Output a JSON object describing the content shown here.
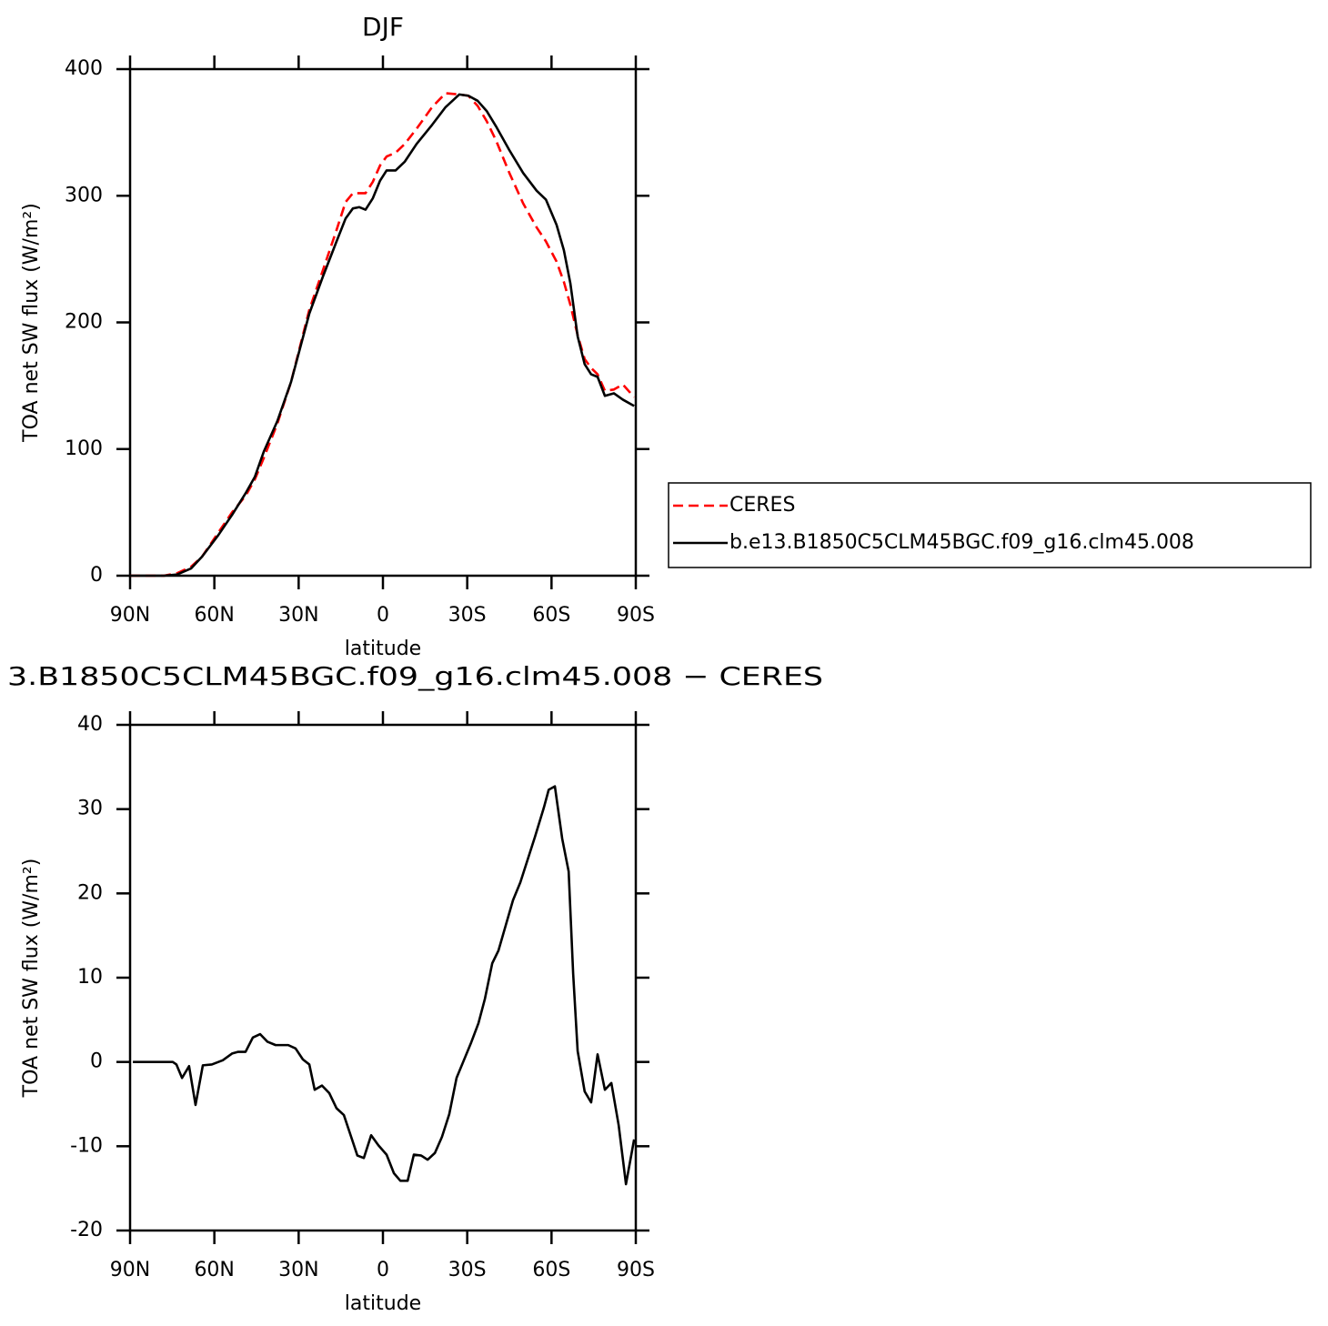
{
  "chart_data": [
    {
      "type": "line",
      "title": "DJF",
      "xlabel": "latitude",
      "ylabel": "TOA net SW flux (W/m²)",
      "xlim": [
        90,
        -90
      ],
      "xticks": [
        {
          "value": 90,
          "label": "90N"
        },
        {
          "value": 60,
          "label": "60N"
        },
        {
          "value": 30,
          "label": "30N"
        },
        0,
        {
          "value": -30,
          "label": "30S"
        },
        {
          "value": -60,
          "label": "60S"
        },
        {
          "value": -90,
          "label": "90S"
        }
      ],
      "ylim": [
        0,
        400
      ],
      "yticks": [
        0,
        100,
        200,
        300,
        400
      ],
      "legend": "right",
      "x": [
        90,
        84.5,
        78.0,
        73.2,
        68.3,
        64.4,
        58.6,
        53.7,
        48.9,
        45.6,
        42.4,
        37.6,
        32.7,
        26.2,
        21.4,
        16.5,
        13.3,
        10.7,
        8.4,
        6.2,
        3.6,
        1.0,
        -1.3,
        -4.5,
        -7.8,
        -12.0,
        -17.5,
        -22.3,
        -27.2,
        -30.4,
        -33.7,
        -36.9,
        -40.2,
        -45.0,
        -49.9,
        -54.7,
        -58.0,
        -61.8,
        -64.4,
        -66.7,
        -69.3,
        -71.8,
        -74.1,
        -76.4,
        -79.0,
        -82.2,
        -85.4,
        -89.4
      ],
      "series": [
        {
          "name": "CERES",
          "color": "#ff0000",
          "dashed": true,
          "values": [
            0,
            0,
            0,
            2,
            7,
            15,
            34,
            50,
            63,
            76,
            93,
            120,
            153,
            210,
            241,
            273,
            295,
            302,
            302,
            302,
            311,
            324,
            331,
            334,
            341,
            353,
            370,
            381,
            380,
            379,
            371,
            359,
            344,
            318,
            294,
            275,
            264,
            248,
            232,
            214,
            190,
            171,
            164,
            159,
            146,
            147,
            151,
            141
          ]
        },
        {
          "name": "b.e13.B1850C5CLM45BGC.f09_g16.clm45.008",
          "color": "#000000",
          "dashed": false,
          "values": [
            0,
            0,
            0,
            1,
            5.7,
            15,
            32,
            48,
            65,
            78,
            98,
            122,
            153,
            207,
            236,
            264,
            282,
            290,
            291,
            289,
            298,
            312,
            320,
            320,
            327,
            341,
            356,
            370,
            380,
            379,
            375,
            367,
            355,
            336,
            318,
            304,
            297,
            277,
            257,
            231,
            189,
            167,
            159,
            157,
            142,
            144,
            139,
            134
          ]
        }
      ]
    },
    {
      "type": "line",
      "title": "3.B1850C5CLM45BGC.f09_g16.clm45.008 − CERES",
      "xlabel": "latitude",
      "ylabel": "TOA net SW flux (W/m²)",
      "xlim": [
        90,
        -90
      ],
      "xticks": [
        {
          "value": 90,
          "label": "90N"
        },
        {
          "value": 60,
          "label": "60N"
        },
        {
          "value": 30,
          "label": "30N"
        },
        0,
        {
          "value": -30,
          "label": "30S"
        },
        {
          "value": -60,
          "label": "60S"
        },
        {
          "value": -90,
          "label": "90S"
        }
      ],
      "ylim": [
        -20,
        40
      ],
      "yticks": [
        -20,
        -10,
        0,
        10,
        20,
        30,
        40
      ],
      "color": "#000000",
      "x": [
        89.0,
        74.8,
        73.5,
        71.5,
        69.0,
        66.7,
        64.1,
        60.9,
        57.0,
        53.7,
        51.5,
        48.9,
        46.3,
        43.7,
        41.1,
        38.2,
        33.7,
        31.1,
        28.5,
        26.2,
        24.3,
        21.7,
        19.1,
        16.5,
        13.9,
        11.3,
        9.1,
        6.8,
        4.2,
        1.6,
        -1.3,
        -3.9,
        -6.2,
        -8.8,
        -11.0,
        -13.6,
        -15.9,
        -18.5,
        -21.0,
        -23.6,
        -26.2,
        -28.8,
        -31.4,
        -34.0,
        -36.3,
        -38.9,
        -41.1,
        -43.7,
        -46.3,
        -48.9,
        -51.5,
        -54.1,
        -57.3,
        -59.0,
        -61.2,
        -63.8,
        -66.1,
        -67.7,
        -69.3,
        -71.8,
        -74.1,
        -76.4,
        -79.0,
        -81.3,
        -83.9,
        -86.5,
        -89.4
      ],
      "values": [
        0,
        0,
        -0.3,
        -1.9,
        -0.5,
        -5.1,
        -0.4,
        -0.3,
        0.2,
        1.0,
        1.2,
        1.2,
        2.9,
        3.3,
        2.4,
        2.0,
        2.0,
        1.6,
        0.3,
        -0.3,
        -3.3,
        -2.8,
        -3.7,
        -5.5,
        -6.3,
        -8.9,
        -11.1,
        -11.4,
        -8.7,
        -9.9,
        -11.0,
        -13.2,
        -14.1,
        -14.1,
        -11.0,
        -11.1,
        -11.6,
        -10.8,
        -8.9,
        -6.2,
        -1.9,
        0.2,
        2.3,
        4.6,
        7.5,
        11.7,
        13.2,
        16.2,
        19.2,
        21.3,
        24.0,
        26.7,
        30.2,
        32.3,
        32.7,
        26.5,
        22.6,
        10.5,
        1.3,
        -3.5,
        -4.8,
        0.9,
        -3.3,
        -2.5,
        -7.5,
        -14.5,
        -9.2
      ]
    }
  ]
}
